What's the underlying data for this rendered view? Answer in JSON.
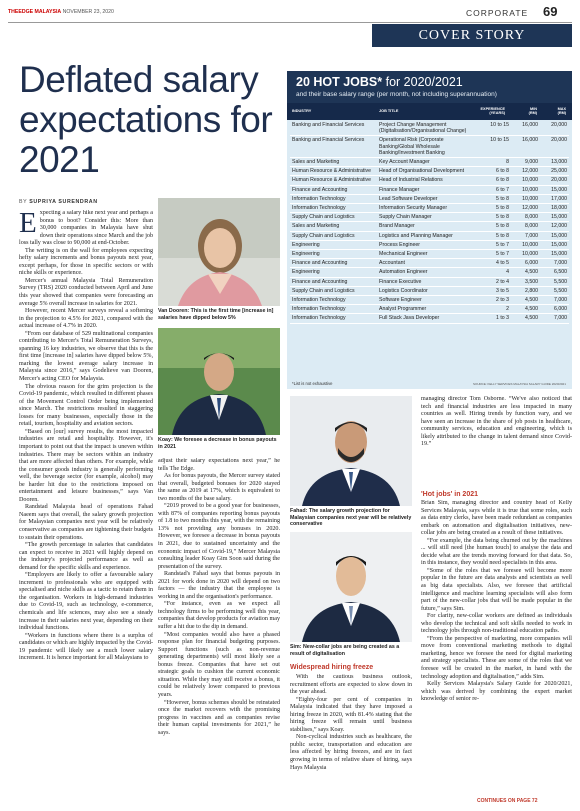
{
  "header": {
    "publication": "THEEDGE MALAYSIA",
    "date": "NOVEMBER 23, 2020",
    "section": "CORPORATE",
    "page_number": "69",
    "banner": "COVER STORY"
  },
  "article": {
    "headline": "Deflated salary expectations for 2021",
    "byline_prefix": "BY",
    "byline_author": "SUPRIYA SURENDRAN",
    "col1": [
      "xpecting a salary hike next year and perhaps a bonus to boot? Consider this: More than 30,000 companies in Malaysia have shut down their operations since March and the job loss tally was close to 90,000 at end-October.",
      "The writing is on the wall for employees expecting hefty salary increments and bonus payouts next year, except perhaps, for those in specific sectors or with niche skills or experience.",
      "Mercer's annual Malaysia Total Remuneration Survey (TRS) 2020 conducted between April and June this year showed that companies were forecasting an average 5% overall increase in salaries for 2021.",
      "However, recent Mercer surveys reveal a softening in the projection to 4.5% for 2021, compared with the actual increase of 4.7% in 2020.",
      "“From our database of 529 multinational companies contributing to Mercer's Total Remuneration Surveys, spanning 16 key industries, we observe that this is the first time [increase in] salaries have dipped below 5%, marking the lowest average salary increase in Malaysia since 2016,” says Godelieve van Dooren, Mercer's acting CEO for Malaysia.",
      "The obvious reason for the grim projection is the Covid-19 pandemic, which resulted in different phases of the Movement Control Order being implemented since March. The restrictions resulted in staggering losses for many businesses, especially those in the retail, tourism, hospitality and aviation sectors.",
      "“Based on [our] survey results, the most impacted industries are retail and hospitality. However, it's important to point out that the impact is uneven within industries. There may be sectors within an industry that are more affected than others. For example, while the consumer goods industry is generally performing well, the beverage sector (for example, alcohol) may be harder hit due to the restrictions imposed on entertainment and leisure businesses,” says Van Dooren.",
      "Randstad Malaysia head of operations Fahad Naeem says that overall, the salary growth projection for Malaysian companies next year will be relatively conservative as companies are tightening their budgets to sustain their operations.",
      "“The growth percentage in salaries that candidates can expect to receive in 2021 will highly depend on the industry's projected performance as well as demand for the specific skills and experience.",
      "“Employers are likely to offer a favourable salary increment to professionals who are equipped with specialised and niche skills as a tactic to retain them in the organisation. Workers in high-demand industries due to Covid-19, such as technology, e-commerce, chemicals and life sciences, may also see a steady increase in their salaries next year, depending on their individual functions.",
      "“Workers in functions where there is a surplus of candidates or which are highly impacted by the Covid-19 pandemic will likely see a much lower salary increment. It is hence important for all Malaysians to"
    ],
    "col2": [
      "adjust their salary expectations next year,” he tells The Edge.",
      "As for bonus payouts, the Mercer survey stated that overall, budgeted bonuses for 2020 stayed the same as 2019 at 17%, which is equivalent to two months of the base salary.",
      "“2019 proved to be a good year for businesses, with 87% of companies reporting bonus payouts of 1.8 to two months this year, with the remaining 13% not providing any bonuses in 2020. However, we foresee a decrease in bonus payouts in 2021, due to sustained uncertainty and the economic impact of Covid-19,” Mercer Malaysia consulting leader Koay Gim Soon said during the presentation of the survey.",
      "Randstad's Fahad says that bonus payouts in 2021 for work done in 2020 will depend on two factors — the industry that the employee is working in and the organisation's performance.",
      "“For instance, even as we expect all technology firms to be performing well this year, companies that develop products for aviation may suffer a hit due to the dip in demand.",
      "“Most companies would also have a phased response plan for financial budgeting purposes. Support functions (such as non-revenue generating departments) will most likely see a bonus freeze. Companies that have set out strategic goals to cushion the current economic situation. While they may still receive a bonus, it could be relatively lower compared to previous years.",
      "“However, bonus schemes should be reinstated once the market recovers with the promising progress in vaccines and as companies revise their human capital investments for 2021,” he says."
    ],
    "col3_subhead": "Widespread hiring freeze",
    "col3": [
      "With the cautious business outlook, recruitment efforts are expected to slow down in the year ahead.",
      "“Eighty-four per cent of companies in Malaysia indicated that they have imposed a hiring freeze in 2020, with 81.4% stating that the hiring freeze will remain until business stabilises,” says Koay.",
      "Non-cyclical industries such as healthcare, the public sector, transportation and education are less affected by hiring freezes, and are in fact growing in terms of relative share of hiring, says Hays Malaysia"
    ],
    "col4": [
      "managing director Tom Osborne. “We've also noticed that tech and financial industries are less impacted in many countries as well. Hiring trends by function vary, and we have seen an increase in the share of job posts in healthcare, community services, education and engineering, which is likely attributed to the change in talent demand since Covid-19.”"
    ],
    "col4_subhead": "'Hot jobs' in 2021",
    "col4b": [
      "Brian Sim, managing director and country head of Kelly Services Malaysia, says while it is true that some roles, such as data entry clerks, have been made redundant as companies embark on automation and digitalisation initiatives, new-collar jobs are being created as a result of these initiatives.",
      "“For example, the data being churned out by the machines ... will still need [the human touch] to analyse the data and decide what are the trends moving forward for that data. So, in this instance, they would need specialists in this area.",
      "“Some of the roles that we foresee will become more popular in the future are data analysts and scientists as well as big data specialists. Also, we foresee that artificial intelligence and machine learning specialists will also form part of the new-collar jobs that will be made popular in the future,” says Sim.",
      "For clarity, new-collar workers are defined as individuals who develop the technical and soft skills needed to work in technology jobs through non-traditional education paths.",
      "“From the perspective of marketing, more companies will move from conventional marketing methods to digital marketing, hence we foresee the need for digital marketing and strategy specialists. These are some of the roles that we foresee will be created in the market, in hand with the technology adoption and digitalisation,” adds Sim.",
      "Kelly Services Malaysia's Salary Guide for 2020/2021, which was derived by combining the expert market knowledge of senior re-"
    ],
    "continues": "CONTINUES ON PAGE 72"
  },
  "captions": {
    "vandooren": "Van Dooren: This is the first time [increase in] salaries have dipped below 5%",
    "koay": "Koay: We foresee a decrease in bonus payouts in 2021",
    "fahad": "Fahad: The salary growth projection for Malaysian companies next year will be relatively conservative",
    "sim": "Sim: New-collar jobs are being created as a result of digitalisation"
  },
  "table": {
    "title_bold": "20 HOT JOBS*",
    "title_rest": " for 2020/2021",
    "subtitle": "and their base salary range (per month, not including superannuation)",
    "columns": [
      "INDUSTRY",
      "JOB TITLE",
      "EXPERIENCE (YEARS)",
      "MIN (RM)",
      "MAX (RM)"
    ],
    "rows": [
      [
        "Banking and Financial Services",
        "Project Change Management (Digitalisation/Organisational Change)",
        "10 to 15",
        "16,000",
        "20,000"
      ],
      [
        "Banking and Financial Services",
        "Operational Risk (Corporate Banking/Global Wholesale Banking/Investment Banking",
        "10 to 15",
        "16,000",
        "20,000"
      ],
      [
        "Sales and Marketing",
        "Key Account Manager",
        "8",
        "9,000",
        "13,000"
      ],
      [
        "Human Resource & Administrative",
        "Head of Organisational Development",
        "6 to 8",
        "12,000",
        "25,000"
      ],
      [
        "Human Resource & Administrative",
        "Head of Industrial Relations",
        "6 to 8",
        "10,000",
        "20,000"
      ],
      [
        "Finance and Accounting",
        "Finance Manager",
        "6 to 7",
        "10,000",
        "15,000"
      ],
      [
        "Information Technology",
        "Lead Software Developer",
        "5 to 8",
        "10,000",
        "17,000"
      ],
      [
        "Information Technology",
        "Information Security Manager",
        "5 to 8",
        "12,000",
        "18,000"
      ],
      [
        "Supply Chain and Logistics",
        "Supply Chain Manager",
        "5 to 8",
        "8,000",
        "15,000"
      ],
      [
        "Sales and Marketing",
        "Brand Manager",
        "5 to 8",
        "8,000",
        "12,000"
      ],
      [
        "Supply Chain and Logistics",
        "Logistics and Planning Manager",
        "5 to 8",
        "7,000",
        "15,000"
      ],
      [
        "Engineering",
        "Process Engineer",
        "5 to 7",
        "10,000",
        "15,000"
      ],
      [
        "Engineering",
        "Mechanical Engineer",
        "5 to 7",
        "10,000",
        "15,000"
      ],
      [
        "Finance and Accounting",
        "Accountant",
        "4 to 5",
        "6,000",
        "7,000"
      ],
      [
        "Engineering",
        "Automation Engineer",
        "4",
        "4,500",
        "6,500"
      ],
      [
        "Finance and Accounting",
        "Finance Executive",
        "2 to 4",
        "3,500",
        "5,500"
      ],
      [
        "Supply Chain and Logistics",
        "Logistics Coordinator",
        "3 to 5",
        "2,800",
        "5,500"
      ],
      [
        "Information Technology",
        "Software Engineer",
        "2 to 3",
        "4,500",
        "7,000"
      ],
      [
        "Information Technology",
        "Analyst Programmer",
        "2",
        "4,500",
        "6,000"
      ],
      [
        "Information Technology",
        "Full Stack Java Developer",
        "1 to 3",
        "4,500",
        "7,000"
      ]
    ],
    "note": "*List is not exhaustive",
    "source": "SOURCE: KELLY SERVICES MALAYSIA SALARY GUIDE 2020/2021"
  }
}
